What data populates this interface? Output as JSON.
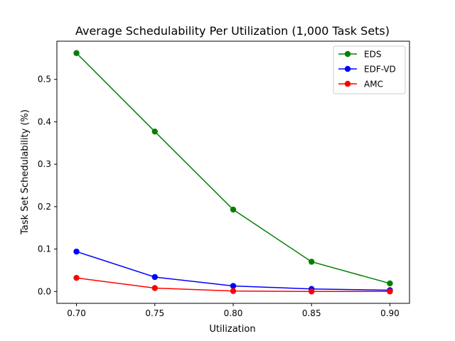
{
  "chart_data": {
    "type": "line",
    "title": "Average Schedulability Per Utilization (1,000 Task Sets)",
    "xlabel": "Utilization",
    "ylabel": "Task Set Schedulability (%)",
    "x": [
      0.7,
      0.75,
      0.8,
      0.85,
      0.9
    ],
    "xticks": [
      "0.70",
      "0.75",
      "0.80",
      "0.85",
      "0.90"
    ],
    "yticks": [
      "0.0",
      "0.1",
      "0.2",
      "0.3",
      "0.4",
      "0.5"
    ],
    "ytick_values": [
      0.0,
      0.1,
      0.2,
      0.3,
      0.4,
      0.5
    ],
    "xlim": [
      0.6875,
      0.9125
    ],
    "ylim": [
      -0.028,
      0.59
    ],
    "grid": false,
    "legend_position": "top-right",
    "series": [
      {
        "name": "EDS",
        "color": "#008000",
        "values": [
          0.562,
          0.377,
          0.193,
          0.07,
          0.019
        ]
      },
      {
        "name": "EDF-VD",
        "color": "#0000ff",
        "values": [
          0.094,
          0.034,
          0.013,
          0.006,
          0.003
        ]
      },
      {
        "name": "AMC",
        "color": "#ff0000",
        "values": [
          0.032,
          0.008,
          0.001,
          0.0,
          0.0
        ]
      }
    ]
  }
}
